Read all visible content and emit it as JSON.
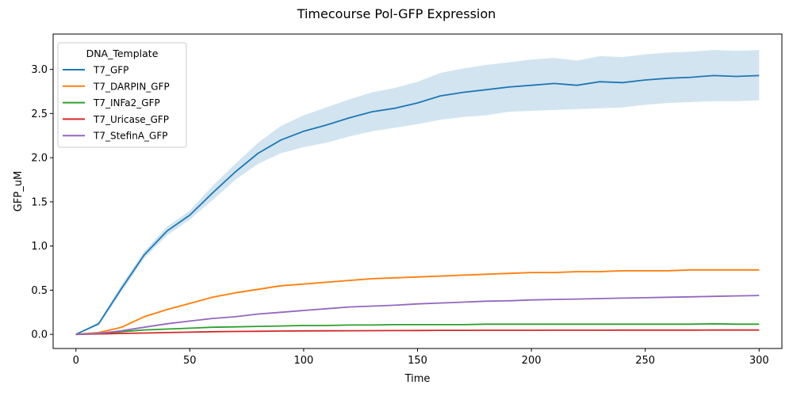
{
  "chart_data": {
    "type": "line",
    "title": "Timecourse Pol-GFP Expression",
    "xlabel": "Time",
    "ylabel": "GFP_uM",
    "xlim": [
      -10,
      310
    ],
    "ylim": [
      -0.16,
      3.4
    ],
    "xticks": [
      "0",
      "50",
      "100",
      "150",
      "200",
      "250",
      "300"
    ],
    "yticks": [
      "0.0",
      "0.5",
      "1.0",
      "1.5",
      "2.0",
      "2.5",
      "3.0"
    ],
    "grid": false,
    "legend": {
      "title": "DNA_Template",
      "placement": "top-left"
    },
    "x": [
      0,
      10,
      20,
      30,
      40,
      50,
      60,
      70,
      80,
      90,
      100,
      110,
      120,
      130,
      140,
      150,
      160,
      170,
      180,
      190,
      200,
      210,
      220,
      230,
      240,
      250,
      260,
      270,
      280,
      290,
      300
    ],
    "series": [
      {
        "name": "T7_GFP",
        "color": "#1f77b4",
        "values": [
          0.0,
          0.12,
          0.52,
          0.9,
          1.17,
          1.35,
          1.6,
          1.84,
          2.05,
          2.2,
          2.3,
          2.37,
          2.45,
          2.52,
          2.56,
          2.62,
          2.7,
          2.74,
          2.77,
          2.8,
          2.82,
          2.84,
          2.82,
          2.86,
          2.85,
          2.88,
          2.9,
          2.91,
          2.93,
          2.92,
          2.93
        ],
        "ci_lower": [
          0.0,
          0.1,
          0.48,
          0.86,
          1.12,
          1.3,
          1.52,
          1.75,
          1.93,
          2.05,
          2.12,
          2.17,
          2.24,
          2.3,
          2.34,
          2.38,
          2.43,
          2.46,
          2.48,
          2.52,
          2.53,
          2.54,
          2.55,
          2.56,
          2.57,
          2.6,
          2.62,
          2.63,
          2.64,
          2.64,
          2.65
        ],
        "ci_upper": [
          0.0,
          0.14,
          0.56,
          0.94,
          1.22,
          1.4,
          1.68,
          1.93,
          2.17,
          2.36,
          2.48,
          2.57,
          2.66,
          2.74,
          2.79,
          2.86,
          2.96,
          3.01,
          3.05,
          3.08,
          3.11,
          3.13,
          3.1,
          3.15,
          3.14,
          3.17,
          3.19,
          3.2,
          3.22,
          3.21,
          3.22
        ]
      },
      {
        "name": "T7_DARPIN_GFP",
        "color": "#ff7f0e",
        "values": [
          0.0,
          0.02,
          0.08,
          0.2,
          0.28,
          0.35,
          0.42,
          0.47,
          0.51,
          0.55,
          0.57,
          0.59,
          0.61,
          0.63,
          0.64,
          0.65,
          0.66,
          0.67,
          0.68,
          0.69,
          0.7,
          0.7,
          0.71,
          0.71,
          0.72,
          0.72,
          0.72,
          0.73,
          0.73,
          0.73,
          0.73
        ],
        "ci_lower": [
          0.0,
          0.015,
          0.07,
          0.19,
          0.27,
          0.34,
          0.41,
          0.46,
          0.5,
          0.54,
          0.56,
          0.58,
          0.6,
          0.62,
          0.63,
          0.64,
          0.65,
          0.66,
          0.67,
          0.68,
          0.69,
          0.69,
          0.7,
          0.7,
          0.71,
          0.71,
          0.71,
          0.72,
          0.72,
          0.72,
          0.72
        ],
        "ci_upper": [
          0.0,
          0.025,
          0.09,
          0.21,
          0.29,
          0.36,
          0.43,
          0.48,
          0.52,
          0.56,
          0.58,
          0.6,
          0.62,
          0.64,
          0.65,
          0.66,
          0.67,
          0.68,
          0.69,
          0.7,
          0.71,
          0.71,
          0.72,
          0.72,
          0.73,
          0.73,
          0.73,
          0.74,
          0.74,
          0.74,
          0.74
        ]
      },
      {
        "name": "T7_INFa2_GFP",
        "color": "#2ca02c",
        "values": [
          0.0,
          0.01,
          0.03,
          0.05,
          0.06,
          0.07,
          0.08,
          0.085,
          0.09,
          0.095,
          0.1,
          0.1,
          0.105,
          0.105,
          0.11,
          0.11,
          0.11,
          0.11,
          0.115,
          0.115,
          0.115,
          0.115,
          0.115,
          0.115,
          0.115,
          0.115,
          0.115,
          0.115,
          0.12,
          0.115,
          0.115
        ],
        "ci_lower": [
          0.0,
          0.005,
          0.025,
          0.045,
          0.055,
          0.065,
          0.075,
          0.08,
          0.085,
          0.09,
          0.095,
          0.095,
          0.1,
          0.1,
          0.105,
          0.105,
          0.105,
          0.105,
          0.11,
          0.11,
          0.11,
          0.11,
          0.11,
          0.11,
          0.11,
          0.11,
          0.11,
          0.11,
          0.115,
          0.11,
          0.11
        ],
        "ci_upper": [
          0.0,
          0.015,
          0.035,
          0.055,
          0.065,
          0.075,
          0.085,
          0.09,
          0.095,
          0.1,
          0.105,
          0.105,
          0.11,
          0.11,
          0.115,
          0.115,
          0.115,
          0.115,
          0.12,
          0.12,
          0.12,
          0.12,
          0.12,
          0.12,
          0.12,
          0.12,
          0.12,
          0.12,
          0.125,
          0.12,
          0.12
        ]
      },
      {
        "name": "T7_Uricase_GFP",
        "color": "#d62728",
        "values": [
          0.0,
          0.005,
          0.01,
          0.015,
          0.02,
          0.025,
          0.03,
          0.033,
          0.035,
          0.037,
          0.039,
          0.04,
          0.041,
          0.042,
          0.043,
          0.044,
          0.045,
          0.045,
          0.046,
          0.046,
          0.046,
          0.047,
          0.047,
          0.047,
          0.048,
          0.048,
          0.048,
          0.048,
          0.049,
          0.049,
          0.049
        ],
        "ci_lower": [
          0.0,
          0.002,
          0.006,
          0.011,
          0.016,
          0.021,
          0.026,
          0.029,
          0.031,
          0.033,
          0.035,
          0.036,
          0.037,
          0.038,
          0.039,
          0.04,
          0.041,
          0.041,
          0.042,
          0.042,
          0.042,
          0.043,
          0.043,
          0.043,
          0.044,
          0.044,
          0.044,
          0.044,
          0.045,
          0.045,
          0.045
        ],
        "ci_upper": [
          0.0,
          0.008,
          0.014,
          0.019,
          0.024,
          0.029,
          0.034,
          0.037,
          0.039,
          0.041,
          0.043,
          0.044,
          0.045,
          0.046,
          0.047,
          0.048,
          0.049,
          0.049,
          0.05,
          0.05,
          0.05,
          0.051,
          0.051,
          0.051,
          0.052,
          0.052,
          0.052,
          0.052,
          0.053,
          0.053,
          0.053
        ]
      },
      {
        "name": "T7_StefinA_GFP",
        "color": "#9467bd",
        "values": [
          0.0,
          0.01,
          0.04,
          0.08,
          0.12,
          0.15,
          0.18,
          0.2,
          0.23,
          0.25,
          0.27,
          0.29,
          0.31,
          0.32,
          0.33,
          0.345,
          0.355,
          0.365,
          0.375,
          0.38,
          0.39,
          0.395,
          0.4,
          0.405,
          0.41,
          0.415,
          0.42,
          0.425,
          0.43,
          0.435,
          0.44
        ],
        "ci_lower": [
          0.0,
          0.005,
          0.035,
          0.075,
          0.115,
          0.145,
          0.175,
          0.195,
          0.225,
          0.245,
          0.265,
          0.285,
          0.305,
          0.315,
          0.325,
          0.34,
          0.35,
          0.36,
          0.37,
          0.375,
          0.385,
          0.39,
          0.395,
          0.4,
          0.405,
          0.41,
          0.415,
          0.42,
          0.425,
          0.43,
          0.435
        ],
        "ci_upper": [
          0.0,
          0.015,
          0.045,
          0.085,
          0.125,
          0.155,
          0.185,
          0.205,
          0.235,
          0.255,
          0.275,
          0.295,
          0.315,
          0.325,
          0.335,
          0.35,
          0.36,
          0.37,
          0.38,
          0.385,
          0.395,
          0.4,
          0.405,
          0.41,
          0.415,
          0.42,
          0.425,
          0.43,
          0.435,
          0.44,
          0.445
        ]
      }
    ]
  }
}
